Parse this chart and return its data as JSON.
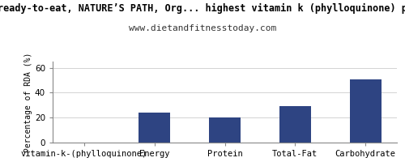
{
  "title": "ready-to-eat, NATURE’S PATH, Org... highest vitamin k (phylloquinone) p",
  "subtitle": "www.dietandfitnesstoday.com",
  "categories": [
    "vitamin-k-(phylloquinone)",
    "Energy",
    "Protein",
    "Total-Fat",
    "Carbohydrate"
  ],
  "values": [
    0,
    24,
    20,
    29,
    51
  ],
  "bar_color": "#2e4482",
  "ylabel": "Percentage of RDA (%)",
  "ylim": [
    0,
    65
  ],
  "yticks": [
    0,
    20,
    40,
    60
  ],
  "background_color": "#ffffff",
  "plot_background": "#ffffff",
  "title_fontsize": 8.5,
  "subtitle_fontsize": 8,
  "ylabel_fontsize": 7,
  "tick_fontsize": 7.5
}
